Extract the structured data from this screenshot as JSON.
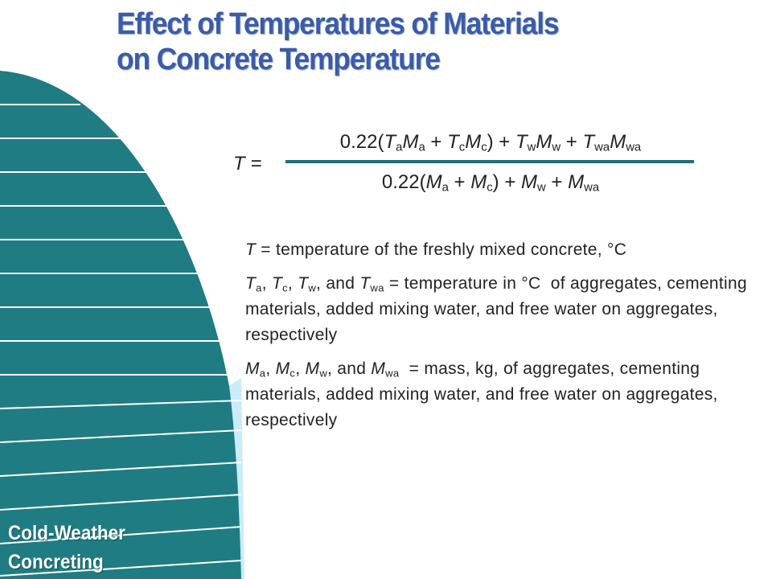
{
  "title": {
    "lines": [
      "Effect of Temperatures of Materials",
      "on Concrete Temperature"
    ]
  },
  "formula": {
    "lhs": "T =",
    "numerator": [
      "0.22(",
      {
        "var": "T",
        "sub": "a"
      },
      {
        "var": "M",
        "sub": "a"
      },
      " + ",
      {
        "var": "T",
        "sub": "c"
      },
      {
        "var": "M",
        "sub": "c"
      },
      ") + ",
      {
        "var": "T",
        "sub": "w"
      },
      {
        "var": "M",
        "sub": "w"
      },
      " + ",
      {
        "var": "T",
        "sub": "wa"
      },
      {
        "var": "M",
        "sub": "wa"
      }
    ],
    "denominator": [
      "0.22(",
      {
        "var": "M",
        "sub": "a"
      },
      " + ",
      {
        "var": "M",
        "sub": "c"
      },
      ") + ",
      {
        "var": "M",
        "sub": "w"
      },
      " + ",
      {
        "var": "M",
        "sub": "wa"
      }
    ]
  },
  "definitions": [
    [
      {
        "var": "T"
      },
      " = temperature of the freshly mixed concrete, °C"
    ],
    [
      {
        "var": "T",
        "sub": "a"
      },
      ", ",
      {
        "var": "T",
        "sub": "c"
      },
      ", ",
      {
        "var": "T",
        "sub": "w"
      },
      ", and ",
      {
        "var": "T",
        "sub": "wa"
      },
      " = temperature in °C  of aggregates, cementing materials, added mixing water, and free water on aggregates, respectively"
    ],
    [
      {
        "var": "M",
        "sub": "a"
      },
      ", ",
      {
        "var": "M",
        "sub": "c"
      },
      ", ",
      {
        "var": "M",
        "sub": "w"
      },
      ", and ",
      {
        "var": "M",
        "sub": "wa"
      },
      "  = mass, kg, of aggregates, cementing materials, added mixing water, and free water on aggregates, respectively"
    ]
  ],
  "sidebar": {
    "lines": [
      "Cold-Weather",
      "Concreting"
    ]
  }
}
